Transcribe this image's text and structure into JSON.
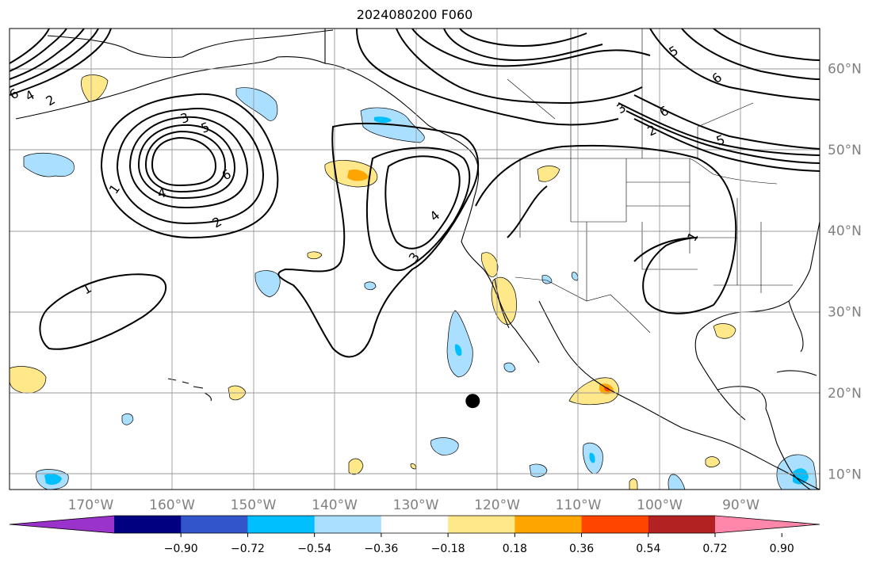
{
  "title": "2024080200 F060",
  "lon_labels": [
    {
      "lon": -170,
      "text": "170°W"
    },
    {
      "lon": -160,
      "text": "160°W"
    },
    {
      "lon": -150,
      "text": "150°W"
    },
    {
      "lon": -140,
      "text": "140°W"
    },
    {
      "lon": -130,
      "text": "130°W"
    },
    {
      "lon": -120,
      "text": "120°W"
    },
    {
      "lon": -110,
      "text": "110°W"
    },
    {
      "lon": -100,
      "text": "100°W"
    },
    {
      "lon": -90,
      "text": "90°W"
    }
  ],
  "lat_labels": [
    {
      "lat": 60,
      "text": "60°N"
    },
    {
      "lat": 50,
      "text": "50°N"
    },
    {
      "lat": 40,
      "text": "40°N"
    },
    {
      "lat": 30,
      "text": "30°N"
    },
    {
      "lat": 20,
      "text": "20°N"
    },
    {
      "lat": 10,
      "text": "10°N"
    }
  ],
  "colorbar": {
    "colors": [
      "#9933cc",
      "#000080",
      "#3355cc",
      "#00bfff",
      "#aadfff",
      "#ffffff",
      "#ffe88a",
      "#ffa500",
      "#ff4500",
      "#b22222",
      "#ff88aa"
    ],
    "ticks": [
      "−0.90",
      "−0.72",
      "−0.54",
      "−0.36",
      "−0.18",
      "0.18",
      "0.36",
      "0.54",
      "0.72",
      "0.90"
    ]
  },
  "contour_labels": [
    "1",
    "2",
    "3",
    "4",
    "5",
    "6"
  ],
  "marker": {
    "label": "storm-center-marker",
    "lon": -123,
    "lat": 19
  },
  "colors": {
    "land_line": "#000000",
    "grid": "#999999",
    "contour": "#000000",
    "tick_text": "#808080"
  }
}
